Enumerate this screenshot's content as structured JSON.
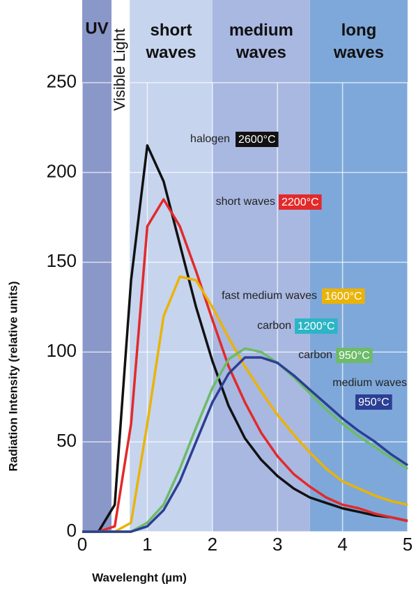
{
  "chart_data": {
    "type": "line",
    "ylabel": "Radiation Intensity (relative units)",
    "xlabel": "Wavelenght (µm)",
    "xlim": [
      0,
      5
    ],
    "ylim": [
      0,
      296
    ],
    "xticks": [
      0,
      1,
      2,
      3,
      4,
      5
    ],
    "yticks": [
      0,
      50,
      100,
      150,
      200,
      250
    ],
    "grid": true,
    "regions": [
      {
        "label": "UV",
        "start": 0,
        "end": 0.45,
        "color": "#8a97c9"
      },
      {
        "label": "Visible Light",
        "start": 0.45,
        "end": 0.73,
        "color": "#ffffff"
      },
      {
        "label": "short waves",
        "start": 0.73,
        "end": 2,
        "color": "#c6d4ee"
      },
      {
        "label": "medium waves",
        "start": 2,
        "end": 3.5,
        "color": "#a9b8e1"
      },
      {
        "label": "long waves",
        "start": 3.5,
        "end": 5,
        "color": "#7ea8da"
      }
    ],
    "x": [
      0,
      0.25,
      0.5,
      0.75,
      1,
      1.25,
      1.5,
      1.75,
      2,
      2.25,
      2.5,
      2.75,
      3,
      3.25,
      3.5,
      3.75,
      4,
      4.25,
      4.5,
      4.75,
      5
    ],
    "series": [
      {
        "name": "halogen",
        "temperature": "2600°C",
        "color": "#111111",
        "values": [
          0,
          0,
          15,
          140,
          215,
          195,
          160,
          125,
          95,
          70,
          52,
          40,
          31,
          24,
          19,
          16,
          13,
          11,
          9,
          8,
          6
        ]
      },
      {
        "name": "short waves",
        "temperature": "2200°C",
        "color": "#e3292a",
        "values": [
          0,
          0,
          3,
          60,
          170,
          185,
          170,
          145,
          118,
          92,
          72,
          55,
          42,
          32,
          25,
          19,
          15,
          13,
          10,
          8,
          6
        ]
      },
      {
        "name": "fast medium waves",
        "temperature": "1600°C",
        "color": "#eab308",
        "values": [
          0,
          0,
          0,
          5,
          60,
          120,
          142,
          140,
          125,
          108,
          92,
          78,
          65,
          54,
          44,
          35,
          28,
          24,
          20,
          17,
          15
        ]
      },
      {
        "name": "carbon",
        "temperature": "1200°C",
        "color": "#2cb5c5",
        "values": [
          null,
          null,
          null,
          null,
          null,
          null,
          null,
          null,
          null,
          null,
          null,
          null,
          null,
          null,
          null,
          null,
          null,
          null,
          null,
          null,
          null
        ]
      },
      {
        "name": "carbon",
        "temperature": "950°C",
        "color": "#6dbb68",
        "values": [
          0,
          0,
          0,
          0,
          5,
          15,
          35,
          58,
          80,
          96,
          102,
          100,
          94,
          86,
          77,
          68,
          60,
          53,
          47,
          41,
          35
        ]
      },
      {
        "name": "medium waves",
        "temperature": "950°C",
        "color": "#2b3f93",
        "values": [
          0,
          0,
          0,
          0,
          3,
          12,
          28,
          50,
          72,
          88,
          97,
          97,
          94,
          87,
          79,
          71,
          63,
          56,
          50,
          43,
          37
        ]
      }
    ]
  }
}
